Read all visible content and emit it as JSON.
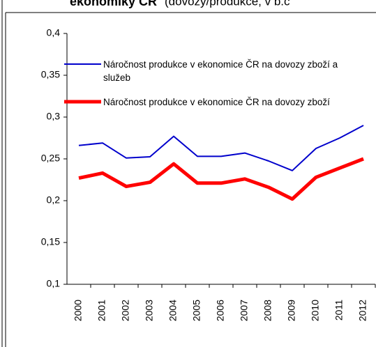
{
  "chart_data": {
    "type": "line",
    "title": "ekonomiky ČR",
    "subtitle": "(dovozy/produkce, v b.c",
    "categories": [
      "2000",
      "2001",
      "2002",
      "2003",
      "2004",
      "2005",
      "2006",
      "2007",
      "2008",
      "2009",
      "2010",
      "2011",
      "2012"
    ],
    "series": [
      {
        "name": "Náročnost produkce v ekonomice ČR na dovozy zboží a služeb",
        "color": "#0000cc",
        "width": 2,
        "values": [
          0.266,
          0.269,
          0.251,
          0.2525,
          0.277,
          0.253,
          0.253,
          0.257,
          0.2475,
          0.236,
          0.2625,
          0.275,
          0.29
        ]
      },
      {
        "name": "Náročnost produkce v ekonomice ČR na dovozy zboží",
        "color": "#ff0000",
        "width": 5,
        "values": [
          0.227,
          0.233,
          0.217,
          0.222,
          0.244,
          0.221,
          0.221,
          0.226,
          0.216,
          0.202,
          0.228,
          0.239,
          0.25
        ]
      }
    ],
    "ylim": [
      0.1,
      0.4
    ],
    "yticks": [
      {
        "value": 0.1,
        "label": "0,1"
      },
      {
        "value": 0.15,
        "label": "0,15"
      },
      {
        "value": 0.2,
        "label": "0,2"
      },
      {
        "value": 0.25,
        "label": "0,25"
      },
      {
        "value": 0.3,
        "label": "0,3"
      },
      {
        "value": 0.35,
        "label": "0,35"
      },
      {
        "value": 0.4,
        "label": "0,4"
      }
    ],
    "grid": false
  }
}
